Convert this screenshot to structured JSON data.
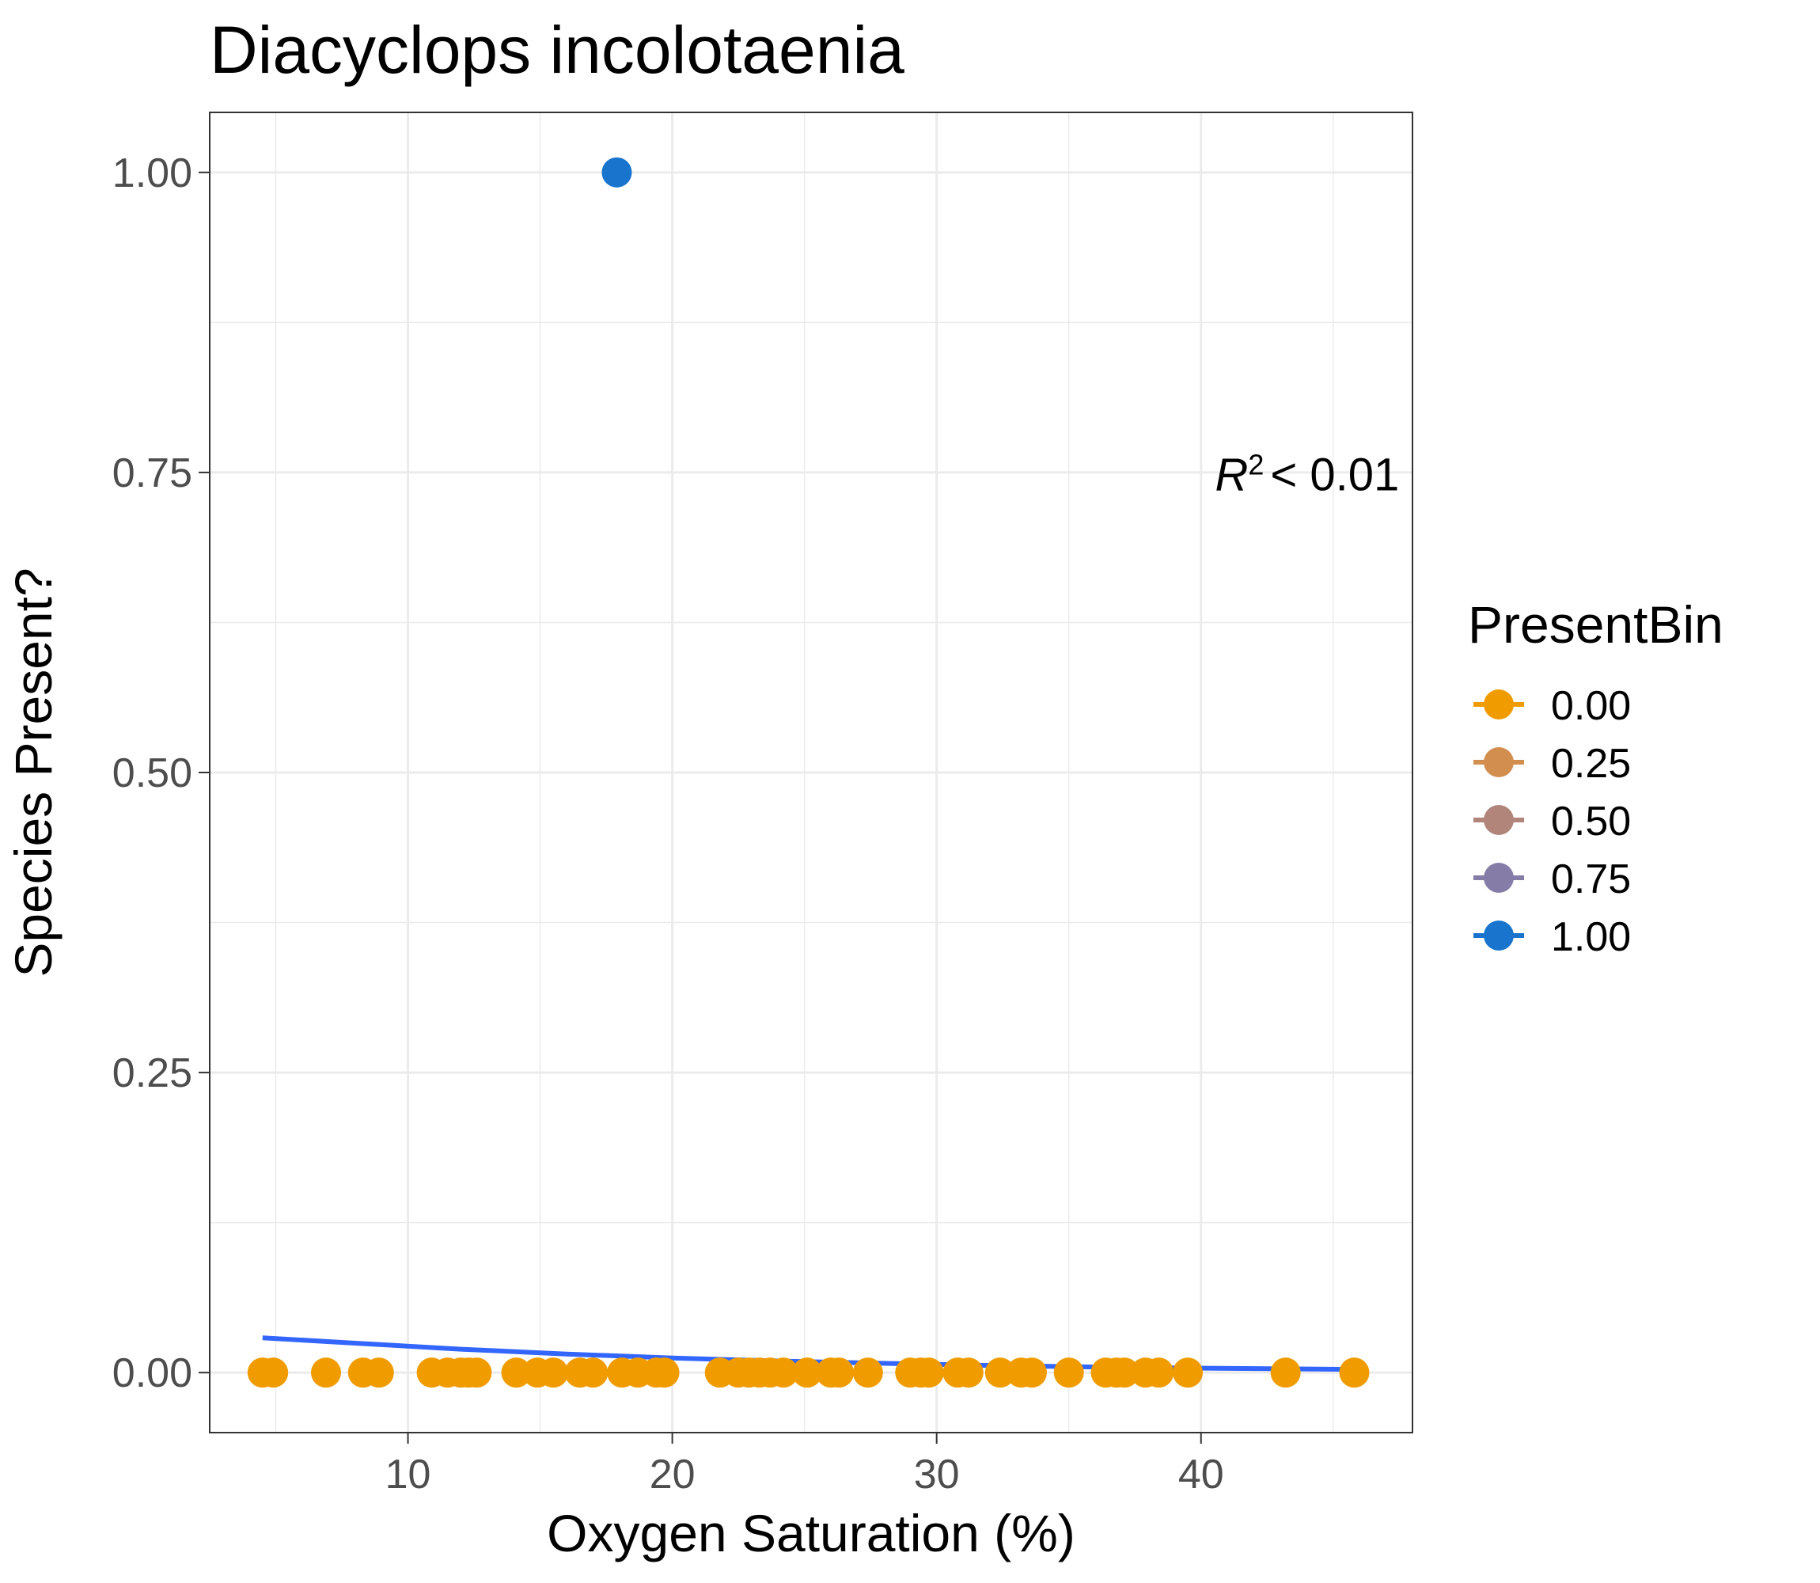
{
  "chart_data": {
    "type": "scatter",
    "title": "Diacyclops incolotaenia",
    "xlabel": "Oxygen Saturation (%)",
    "ylabel": "Species Present?",
    "xlim": [
      2.5,
      48
    ],
    "ylim": [
      -0.05,
      1.05
    ],
    "x_ticks": [
      10,
      20,
      30,
      40
    ],
    "x_tick_labels": [
      "10",
      "20",
      "30",
      "40"
    ],
    "y_ticks": [
      0,
      0.25,
      0.5,
      0.75,
      1
    ],
    "y_tick_labels": [
      "0.00",
      "0.25",
      "0.50",
      "0.75",
      "1.00"
    ],
    "grid": true,
    "legend": {
      "title": "PresentBin",
      "position": "right",
      "entries": [
        {
          "label": "0.00",
          "color": "#F09C00"
        },
        {
          "label": "0.25",
          "color": "#D28E4F"
        },
        {
          "label": "0.50",
          "color": "#B1857A"
        },
        {
          "label": "0.75",
          "color": "#857DA7"
        },
        {
          "label": "1.00",
          "color": "#1874CD"
        }
      ]
    },
    "series": [
      {
        "values_color": "#F09C00",
        "points": [
          [
            4.5,
            0
          ],
          [
            4.9,
            0
          ],
          [
            6.9,
            0
          ],
          [
            8.3,
            0
          ],
          [
            8.9,
            0
          ],
          [
            10.9,
            0
          ],
          [
            11.5,
            0
          ],
          [
            12.0,
            0
          ],
          [
            12.3,
            0
          ],
          [
            12.6,
            0
          ],
          [
            14.1,
            0
          ],
          [
            14.9,
            0
          ],
          [
            15.5,
            0
          ],
          [
            16.5,
            0
          ],
          [
            17.0,
            0
          ],
          [
            18.1,
            0
          ],
          [
            18.7,
            0
          ],
          [
            19.4,
            0
          ],
          [
            19.7,
            0
          ],
          [
            21.8,
            0
          ],
          [
            22.5,
            0
          ],
          [
            22.9,
            0
          ],
          [
            23.3,
            0
          ],
          [
            23.7,
            0
          ],
          [
            24.2,
            0
          ],
          [
            25.1,
            0
          ],
          [
            26.0,
            0
          ],
          [
            26.3,
            0
          ],
          [
            27.4,
            0
          ],
          [
            29.0,
            0
          ],
          [
            29.4,
            0
          ],
          [
            29.7,
            0
          ],
          [
            30.8,
            0
          ],
          [
            31.2,
            0
          ],
          [
            32.4,
            0
          ],
          [
            33.2,
            0
          ],
          [
            33.6,
            0
          ],
          [
            35.0,
            0
          ],
          [
            36.4,
            0
          ],
          [
            36.8,
            0
          ],
          [
            37.1,
            0
          ],
          [
            37.9,
            0
          ],
          [
            38.4,
            0
          ],
          [
            39.5,
            0
          ],
          [
            43.2,
            0
          ],
          [
            45.8,
            0
          ]
        ]
      },
      {
        "values_color": "#1874CD",
        "points": [
          [
            17.9,
            1
          ]
        ]
      }
    ],
    "fit_line": {
      "color": "#3366FF",
      "points": [
        [
          4.5,
          0.029
        ],
        [
          8,
          0.0245
        ],
        [
          12,
          0.0195
        ],
        [
          16,
          0.0155
        ],
        [
          20,
          0.0122
        ],
        [
          24,
          0.0097
        ],
        [
          28,
          0.0077
        ],
        [
          32,
          0.006
        ],
        [
          36,
          0.0047
        ],
        [
          40,
          0.0037
        ],
        [
          44,
          0.003
        ],
        [
          45.8,
          0.0027
        ]
      ]
    },
    "annotation": {
      "prefix": "R",
      "superscript": "2",
      "relation": "< 0.01",
      "x": 47.5,
      "y": 0.735
    }
  }
}
